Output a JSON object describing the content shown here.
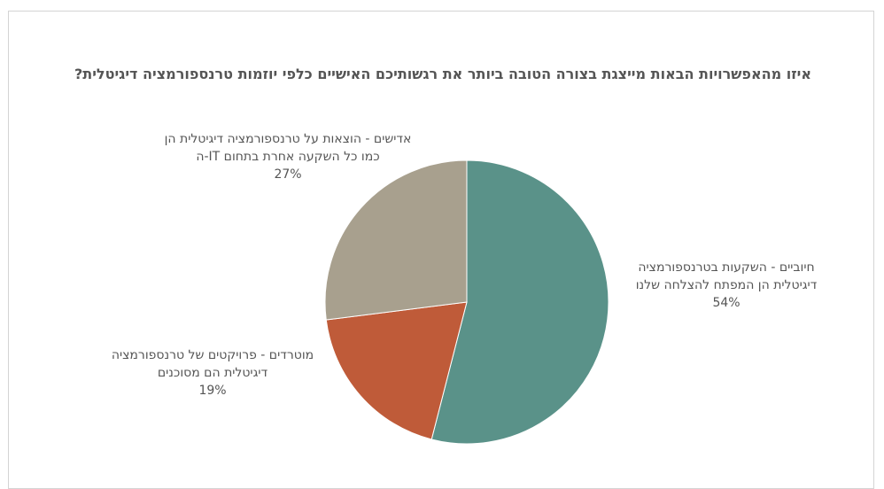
{
  "chart_data": {
    "type": "pie",
    "title": "איזו מהאפשרויות הבאות מייצגת בצורה הטובה ביותר את רגשותיכם האישיים כלפי יוזמות טרנספורמציה דיגיטלית?",
    "slices": [
      {
        "label": "חיוביים - השקעות בטרנספורמציה דיגיטלית הן המפתח להצלחה שלנו",
        "value": 54,
        "value_label": "54%",
        "color": "#5a9289"
      },
      {
        "label": "מוטרדים - פרויקטים של טרנספורמציה דיגיטלית הם מסוכנים",
        "value": 19,
        "value_label": "19%",
        "color": "#bf5b39"
      },
      {
        "label": "אדישים - הוצאות על טרנספורמציה דיגיטלית הן כמו כל השקעה אחרת בתחום IT-ה",
        "value": 27,
        "value_label": "27%",
        "color": "#a8a08e"
      }
    ]
  }
}
